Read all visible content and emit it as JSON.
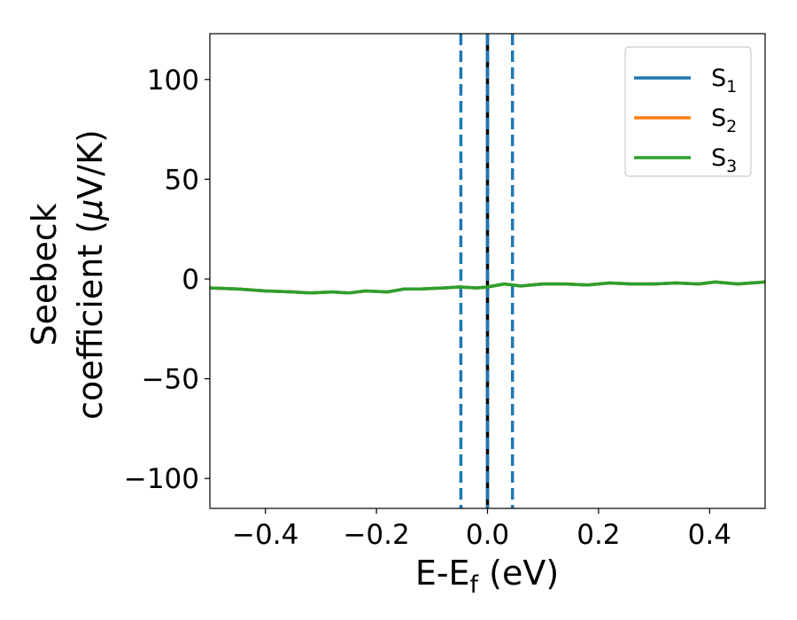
{
  "chart_data": {
    "type": "line",
    "xlabel": "E-E",
    "xlabel_sub": "f",
    "xlabel_unit": " (eV)",
    "ylabel_line1": "Seebeck",
    "ylabel_line2": "coefficient  (",
    "ylabel_mu": "μ",
    "ylabel_unit": "V/K)",
    "xlim": [
      -0.5,
      0.5
    ],
    "ylim": [
      -115,
      123
    ],
    "x_ticks": [
      -0.4,
      -0.2,
      0.0,
      0.2,
      0.4
    ],
    "x_tick_labels": [
      "−0.4",
      "−0.2",
      "0.0",
      "0.2",
      "0.4"
    ],
    "y_ticks": [
      100,
      50,
      0,
      -50,
      -100
    ],
    "y_tick_labels": [
      "100",
      "50",
      "0",
      "−50",
      "−100"
    ],
    "legend_position": "upper right",
    "vlines": [
      {
        "x": -0.048,
        "style": "dashed",
        "color": "#1f77b4"
      },
      {
        "x": 0.0,
        "style": "solid",
        "color": "#000000"
      },
      {
        "x": 0.0,
        "style": "dashed",
        "color": "#1f77b4"
      },
      {
        "x": 0.045,
        "style": "dashed",
        "color": "#1f77b4"
      }
    ],
    "x": [
      -0.5,
      -0.45,
      -0.4,
      -0.35,
      -0.32,
      -0.28,
      -0.25,
      -0.22,
      -0.18,
      -0.15,
      -0.12,
      -0.08,
      -0.05,
      -0.02,
      0.0,
      0.03,
      0.06,
      0.1,
      0.14,
      0.18,
      0.22,
      0.26,
      0.3,
      0.34,
      0.38,
      0.41,
      0.45,
      0.5
    ],
    "series": [
      {
        "name": "S",
        "sub": "1",
        "color": "#1f77b4",
        "values": [
          -4.5,
          -5.0,
          -6.0,
          -6.5,
          -7.0,
          -6.5,
          -7.0,
          -6.0,
          -6.5,
          -5.0,
          -5.0,
          -4.5,
          -4.0,
          -4.5,
          -4.0,
          -2.5,
          -3.5,
          -2.5,
          -2.5,
          -3.0,
          -2.0,
          -2.5,
          -2.5,
          -2.0,
          -2.5,
          -1.5,
          -2.5,
          -1.5
        ]
      },
      {
        "name": "S",
        "sub": "2",
        "color": "#ff7f0e",
        "values": [
          -4.5,
          -5.0,
          -6.0,
          -6.5,
          -7.0,
          -6.5,
          -7.0,
          -6.0,
          -6.5,
          -5.0,
          -5.0,
          -4.5,
          -4.0,
          -4.5,
          -4.0,
          -2.5,
          -3.5,
          -2.5,
          -2.5,
          -3.0,
          -2.0,
          -2.5,
          -2.5,
          -2.0,
          -2.5,
          -1.5,
          -2.5,
          -1.5
        ]
      },
      {
        "name": "S",
        "sub": "3",
        "color": "#2ca02c",
        "values": [
          -4.5,
          -5.0,
          -6.0,
          -6.5,
          -7.0,
          -6.5,
          -7.0,
          -6.0,
          -6.5,
          -5.0,
          -5.0,
          -4.5,
          -4.0,
          -4.5,
          -4.0,
          -2.5,
          -3.5,
          -2.5,
          -2.5,
          -3.0,
          -2.0,
          -2.5,
          -2.5,
          -2.0,
          -2.5,
          -1.5,
          -2.5,
          -1.5
        ]
      }
    ]
  }
}
